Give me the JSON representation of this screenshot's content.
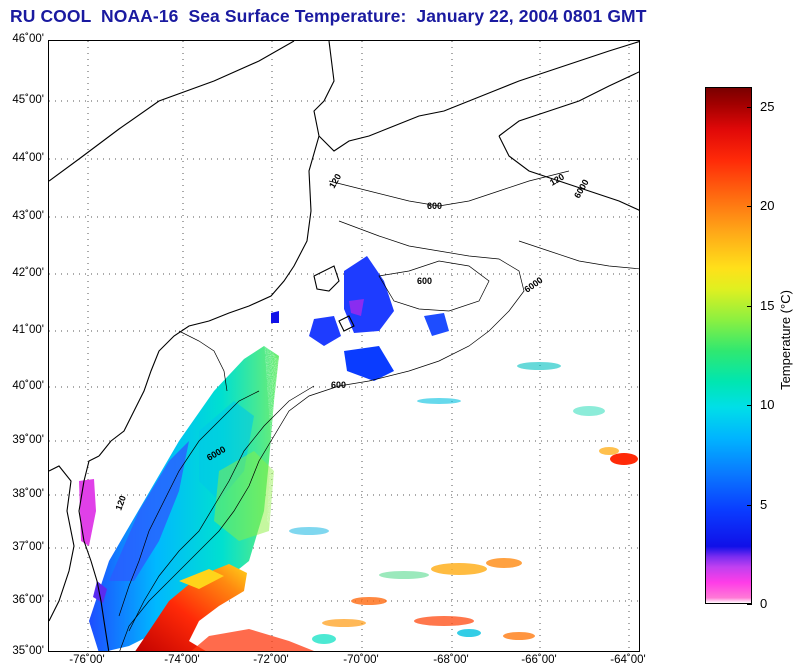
{
  "title": "RU COOL  NOAA-16  Sea Surface Temperature:  January 22, 2004 0801 GMT",
  "map": {
    "lat_labels": [
      "46˚00'",
      "45˚00'",
      "44˚00'",
      "43˚00'",
      "42˚00'",
      "41˚00'",
      "40˚00'",
      "39˚00'",
      "38˚00'",
      "37˚00'",
      "36˚00'",
      "35˚00'"
    ],
    "lon_labels": [
      "-76˚00'",
      "-74˚00'",
      "-72˚00'",
      "-70˚00'",
      "-68˚00'",
      "-66˚00'",
      "-64˚00'"
    ],
    "isobath_labels": [
      "120",
      "600",
      "6000",
      "120",
      "600",
      "6000",
      "600",
      "120",
      "6000"
    ],
    "colors": {
      "land_line": "#000000",
      "grid": "#555555",
      "ocean": "#ffffff"
    }
  },
  "colorbar": {
    "ticks": [
      "25",
      "20",
      "15",
      "10",
      "5",
      "0"
    ],
    "label": "Temperature (°C)",
    "range": [
      0,
      26
    ]
  }
}
